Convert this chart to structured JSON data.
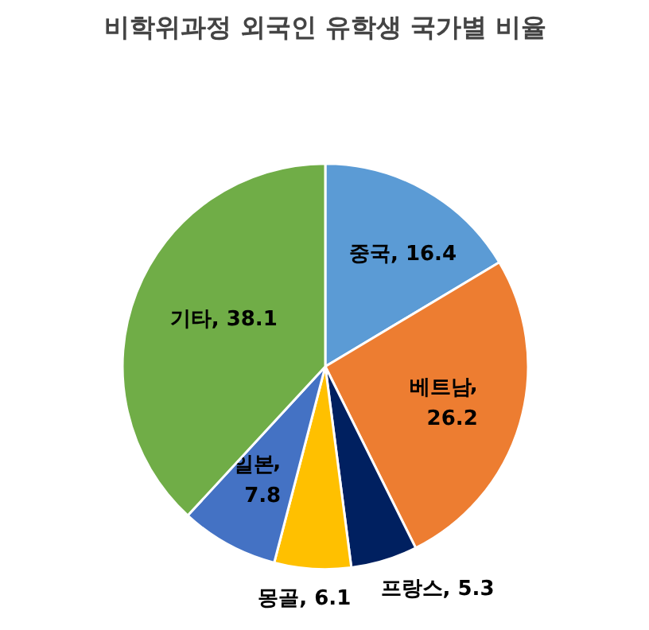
{
  "chart_data": {
    "type": "pie",
    "title": "비학위과정 외국인 유학생 국가별 비율",
    "categories": [
      "중국",
      "베트남",
      "프랑스",
      "몽골",
      "일본",
      "기타"
    ],
    "values": [
      16.4,
      26.2,
      5.3,
      6.1,
      7.8,
      38.1
    ],
    "colors": [
      "#5b9bd5",
      "#ed7d31",
      "#002060",
      "#ffc000",
      "#4472c4",
      "#70ad47"
    ],
    "value_labels": [
      ", 16.4",
      ",\n26.2",
      ", 5.3",
      ", 6.1",
      ",\n7.8",
      ", 38.1"
    ]
  }
}
